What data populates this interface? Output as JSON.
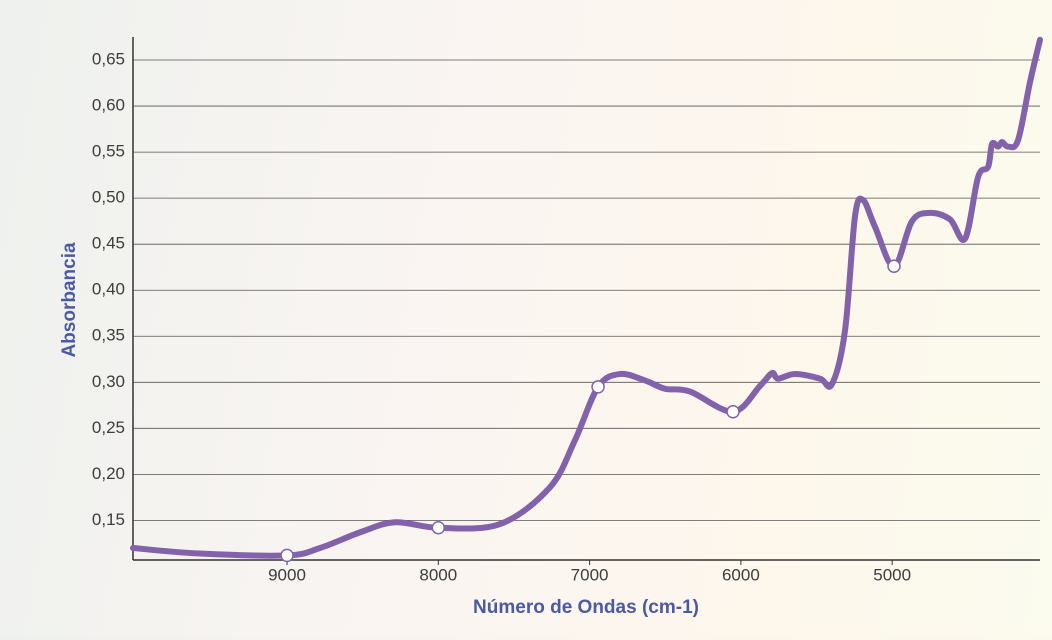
{
  "chart_data": {
    "type": "line",
    "ylabel": "Absorbancia",
    "xlabel": "Número de Ondas (cm-1)",
    "xlim": [
      10018,
      4023
    ],
    "ylim": [
      0.107,
      0.675
    ],
    "xticks": [
      9000,
      8000,
      7000,
      6000,
      5000
    ],
    "yticks": [
      {
        "value": 0.15,
        "label": "0,15"
      },
      {
        "value": 0.2,
        "label": "0,20"
      },
      {
        "value": 0.25,
        "label": "0,25"
      },
      {
        "value": 0.3,
        "label": "0,30"
      },
      {
        "value": 0.35,
        "label": "0,35"
      },
      {
        "value": 0.4,
        "label": "0,40"
      },
      {
        "value": 0.45,
        "label": "0,45"
      },
      {
        "value": 0.5,
        "label": "0,50"
      },
      {
        "value": 0.55,
        "label": "0,55"
      },
      {
        "value": 0.6,
        "label": "0,60"
      },
      {
        "value": 0.65,
        "label": "0,65"
      }
    ],
    "grid": true,
    "color": "#8262aa",
    "x": [
      10018,
      9575,
      9000,
      8782,
      8518,
      8286,
      8000,
      7592,
      7262,
      7097,
      6944,
      6800,
      6634,
      6502,
      6337,
      6052,
      5874,
      5794,
      5755,
      5642,
      5477,
      5398,
      5312,
      5246,
      5193,
      5114,
      4988,
      4869,
      4750,
      4618,
      4518,
      4432,
      4366,
      4340,
      4300,
      4274,
      4234,
      4168,
      4089,
      4023
    ],
    "values": [
      0.12,
      0.114,
      0.112,
      0.12,
      0.137,
      0.148,
      0.142,
      0.146,
      0.186,
      0.237,
      0.295,
      0.309,
      0.302,
      0.293,
      0.29,
      0.268,
      0.296,
      0.31,
      0.304,
      0.309,
      0.304,
      0.298,
      0.356,
      0.48,
      0.498,
      0.469,
      0.426,
      0.475,
      0.484,
      0.477,
      0.456,
      0.523,
      0.534,
      0.559,
      0.556,
      0.561,
      0.556,
      0.563,
      0.626,
      0.672
    ],
    "markers": {
      "x": [
        9000,
        8000,
        6944,
        6052,
        4988
      ],
      "values": [
        0.112,
        0.142,
        0.295,
        0.268,
        0.426
      ]
    }
  }
}
